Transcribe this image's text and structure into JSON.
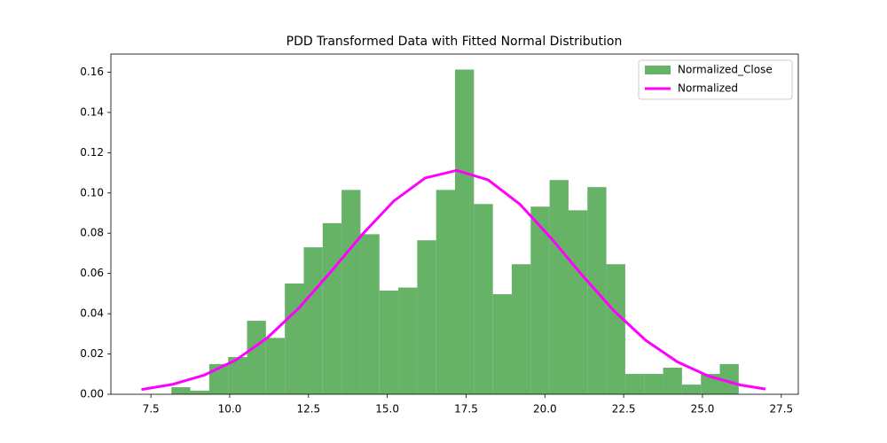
{
  "chart_data": {
    "type": "histogram",
    "title": "PDD Transformed Data with Fitted Normal Distribution",
    "xlim": [
      6.23,
      28.04
    ],
    "ylim": [
      0,
      0.169
    ],
    "xticks": [
      7.5,
      {
        "value": 10,
        "label": "10.0"
      },
      12.5,
      {
        "value": 15,
        "label": "15.0"
      },
      17.5,
      {
        "value": 20,
        "label": "20.0"
      },
      22.5,
      {
        "value": 25,
        "label": "25.0"
      },
      27.5
    ],
    "yticks": [
      {
        "value": 0,
        "label": "0.00"
      },
      0.02,
      0.04,
      0.06,
      0.08,
      {
        "value": 0.1,
        "label": "0.10"
      },
      0.12,
      0.14,
      0.16
    ],
    "legend": "upper right",
    "bins": [
      8.15,
      8.75,
      9.35,
      9.95,
      10.55,
      11.15,
      11.75,
      12.35,
      12.95,
      13.55,
      14.15,
      14.75,
      15.35,
      15.95,
      16.55,
      17.15,
      17.75,
      18.35,
      18.95,
      19.55,
      20.15,
      20.75,
      21.35,
      21.95,
      22.55,
      23.15,
      23.75,
      24.35,
      24.95,
      25.55,
      26.15
    ],
    "series": [
      {
        "name": "Normalized_Close",
        "type": "histogram",
        "color": "#66b266",
        "values": [
          0.0035,
          0.0018,
          0.015,
          0.0185,
          0.0365,
          0.028,
          0.055,
          0.073,
          0.085,
          0.1015,
          0.0795,
          0.0515,
          0.053,
          0.0765,
          0.1015,
          0.1613,
          0.0945,
          0.0497,
          0.0646,
          0.0932,
          0.1064,
          0.0914,
          0.1029,
          0.0646,
          0.0101,
          0.0101,
          0.0132,
          0.0048,
          0.0101,
          0.015
        ]
      },
      {
        "name": "Normalized",
        "type": "line",
        "color": "#ff00ff",
        "x": [
          7.2,
          8.2,
          9.2,
          10.2,
          11.2,
          12.2,
          13.2,
          14.2,
          15.2,
          16.2,
          17.2,
          18.2,
          19.2,
          20.2,
          21.2,
          22.2,
          23.2,
          24.2,
          25.2,
          26.2,
          27.0
        ],
        "values": [
          0.00238,
          0.00496,
          0.00956,
          0.01703,
          0.02812,
          0.04293,
          0.06067,
          0.0793,
          0.0959,
          0.1074,
          0.1112,
          0.1065,
          0.0945,
          0.0775,
          0.0588,
          0.0413,
          0.0268,
          0.01614,
          0.00897,
          0.00462,
          0.00257
        ]
      }
    ]
  }
}
